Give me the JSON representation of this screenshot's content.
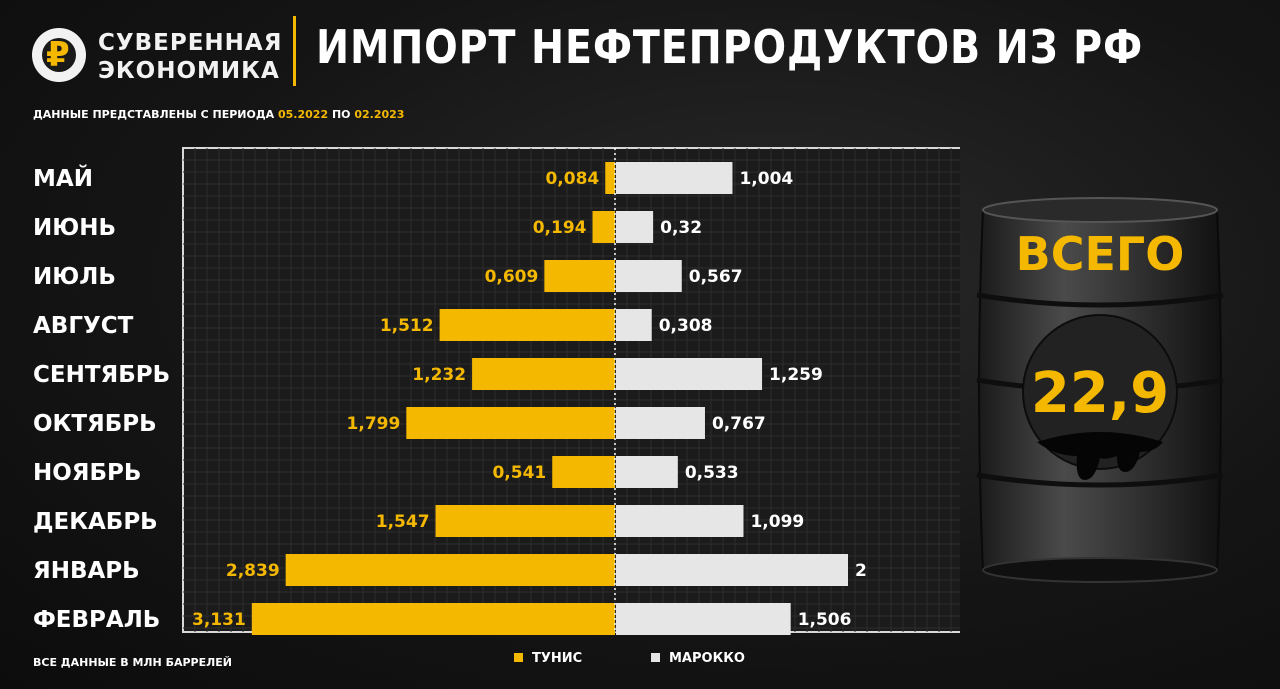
{
  "brand": {
    "line1": "СУВЕРЕННАЯ",
    "line2": "ЭКОНОМИКА",
    "glyph": "₽"
  },
  "header": {
    "title": "ИМПОРТ НЕФТЕПРОДУКТОВ ИЗ РФ",
    "subtitle_prefix": "ДАННЫЕ ПРЕДСТАВЛЕНЫ С ПЕРИОДА",
    "period_start": "05.2022",
    "subtitle_mid": "ПО",
    "period_end": "02.2023"
  },
  "footer": {
    "note": "ВСЕ ДАННЫЕ В МЛН БАРРЕЛЕЙ"
  },
  "colors": {
    "tunisia": "#f5b800",
    "morocco": "#e6e6e6",
    "accent": "#f5b800"
  },
  "total": {
    "label": "ВСЕГО",
    "value": "22,9"
  },
  "chart_data": {
    "type": "bar",
    "orientation": "horizontal-diverging",
    "title": "ИМПОРТ НЕФТЕПРОДУКТОВ ИЗ РФ",
    "categories": [
      "МАЙ",
      "ИЮНЬ",
      "ИЮЛЬ",
      "АВГУСТ",
      "СЕНТЯБРЬ",
      "ОКТЯБРЬ",
      "НОЯБРЬ",
      "ДЕКАБРЬ",
      "ЯНВАРЬ",
      "ФЕВРАЛЬ"
    ],
    "series": [
      {
        "name": "ТУНИС",
        "values": [
          0.084,
          0.194,
          0.609,
          1.512,
          1.232,
          1.799,
          0.541,
          1.547,
          2.839,
          3.131
        ],
        "labels": [
          "0,084",
          "0,194",
          "0,609",
          "1,512",
          "1,232",
          "1,799",
          "0,541",
          "1,547",
          "2,839",
          "3,131"
        ]
      },
      {
        "name": "МАРОККО",
        "values": [
          1.004,
          0.32,
          0.567,
          0.308,
          1.259,
          0.767,
          0.533,
          1.099,
          2,
          1.506
        ],
        "labels": [
          "1,004",
          "0,32",
          "0,567",
          "0,308",
          "1,259",
          "0,767",
          "0,533",
          "1,099",
          "2",
          "1,506"
        ]
      }
    ],
    "legend_position": "bottom",
    "grid": true
  }
}
